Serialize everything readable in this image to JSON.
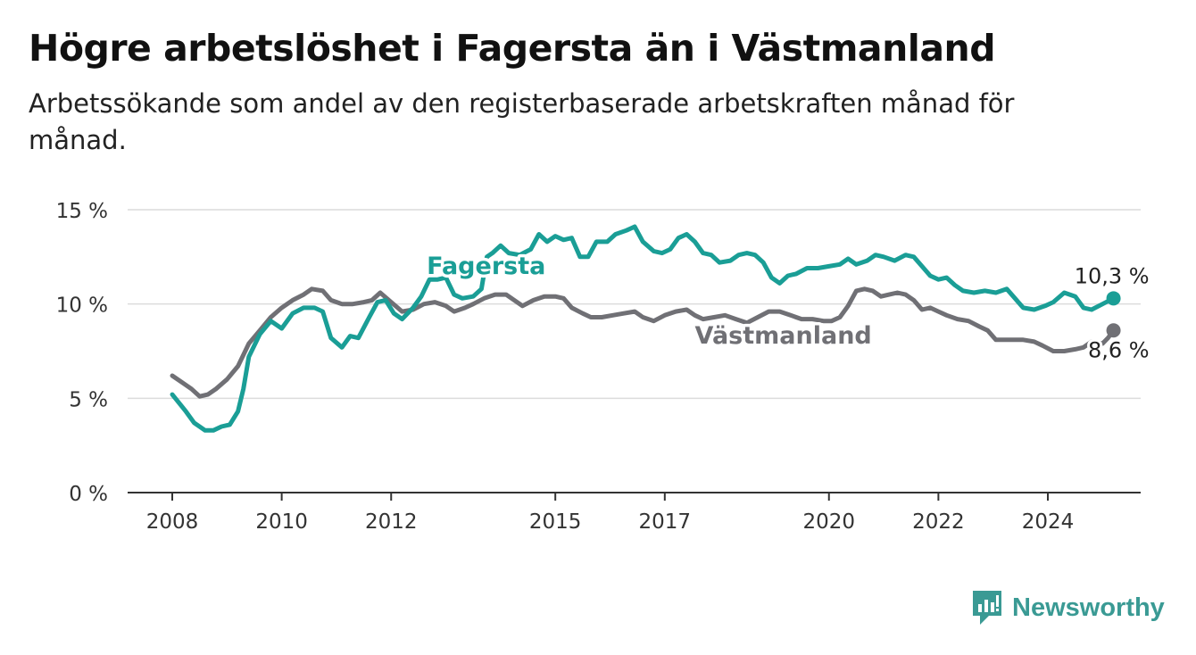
{
  "header": {
    "title": "Högre arbetslöshet i Fagersta än i Västmanland",
    "subtitle": "Arbetssökande som andel av den registerbaserade arbetskraften månad för månad."
  },
  "brand": {
    "name": "Newsworthy",
    "icon": "newsworthy-logo-icon",
    "color": "#3a9a94"
  },
  "chart_data": {
    "type": "line",
    "title": "Högre arbetslöshet i Fagersta än i Västmanland",
    "subtitle": "Arbetssökande som andel av den registerbaserade arbetskraften månad för månad.",
    "xlabel": "",
    "ylabel": "",
    "xlim": [
      2008,
      2025
    ],
    "ylim": [
      0,
      15
    ],
    "grid": true,
    "legend": "inline labels",
    "x_ticks": [
      {
        "value": 2008,
        "label": "2008"
      },
      {
        "value": 2010,
        "label": "2010"
      },
      {
        "value": 2012,
        "label": "2012"
      },
      {
        "value": 2015,
        "label": "2015"
      },
      {
        "value": 2017,
        "label": "2017"
      },
      {
        "value": 2020,
        "label": "2020"
      },
      {
        "value": 2022,
        "label": "2022"
      },
      {
        "value": 2024,
        "label": "2024"
      }
    ],
    "y_ticks": [
      {
        "value": 0,
        "label": "0 %"
      },
      {
        "value": 5,
        "label": "5 %"
      },
      {
        "value": 10,
        "label": "10 %"
      },
      {
        "value": 15,
        "label": "15 %"
      }
    ],
    "series": [
      {
        "name": "Fagersta",
        "color": "#1a9e96",
        "end_label": "10,3 %",
        "points": [
          [
            2008.0,
            5.2
          ],
          [
            2008.25,
            4.3
          ],
          [
            2008.4,
            3.7
          ],
          [
            2008.6,
            3.3
          ],
          [
            2008.75,
            3.3
          ],
          [
            2008.9,
            3.5
          ],
          [
            2009.05,
            3.6
          ],
          [
            2009.2,
            4.3
          ],
          [
            2009.3,
            5.5
          ],
          [
            2009.4,
            7.2
          ],
          [
            2009.6,
            8.4
          ],
          [
            2009.8,
            9.1
          ],
          [
            2010.0,
            8.7
          ],
          [
            2010.2,
            9.5
          ],
          [
            2010.4,
            9.8
          ],
          [
            2010.6,
            9.8
          ],
          [
            2010.75,
            9.6
          ],
          [
            2010.9,
            8.2
          ],
          [
            2011.1,
            7.7
          ],
          [
            2011.25,
            8.3
          ],
          [
            2011.4,
            8.2
          ],
          [
            2011.6,
            9.3
          ],
          [
            2011.75,
            10.1
          ],
          [
            2011.9,
            10.2
          ],
          [
            2012.05,
            9.5
          ],
          [
            2012.2,
            9.2
          ],
          [
            2012.4,
            9.8
          ],
          [
            2012.55,
            10.4
          ],
          [
            2012.7,
            11.3
          ],
          [
            2012.85,
            11.3
          ],
          [
            2013.0,
            11.4
          ],
          [
            2013.15,
            10.5
          ],
          [
            2013.3,
            10.3
          ],
          [
            2013.5,
            10.4
          ],
          [
            2013.65,
            10.8
          ],
          [
            2013.75,
            12.5
          ],
          [
            2013.85,
            12.7
          ],
          [
            2014.0,
            13.1
          ],
          [
            2014.15,
            12.7
          ],
          [
            2014.35,
            12.6
          ],
          [
            2014.55,
            12.9
          ],
          [
            2014.7,
            13.7
          ],
          [
            2014.85,
            13.3
          ],
          [
            2015.0,
            13.6
          ],
          [
            2015.15,
            13.4
          ],
          [
            2015.3,
            13.5
          ],
          [
            2015.45,
            12.5
          ],
          [
            2015.6,
            12.5
          ],
          [
            2015.75,
            13.3
          ],
          [
            2015.95,
            13.3
          ],
          [
            2016.1,
            13.7
          ],
          [
            2016.3,
            13.9
          ],
          [
            2016.45,
            14.1
          ],
          [
            2016.6,
            13.3
          ],
          [
            2016.8,
            12.8
          ],
          [
            2016.95,
            12.7
          ],
          [
            2017.1,
            12.9
          ],
          [
            2017.25,
            13.5
          ],
          [
            2017.4,
            13.7
          ],
          [
            2017.55,
            13.3
          ],
          [
            2017.7,
            12.7
          ],
          [
            2017.85,
            12.6
          ],
          [
            2018.0,
            12.2
          ],
          [
            2018.2,
            12.3
          ],
          [
            2018.35,
            12.6
          ],
          [
            2018.5,
            12.7
          ],
          [
            2018.65,
            12.6
          ],
          [
            2018.8,
            12.2
          ],
          [
            2018.95,
            11.4
          ],
          [
            2019.1,
            11.1
          ],
          [
            2019.25,
            11.5
          ],
          [
            2019.4,
            11.6
          ],
          [
            2019.6,
            11.9
          ],
          [
            2019.8,
            11.9
          ],
          [
            2020.0,
            12.0
          ],
          [
            2020.2,
            12.1
          ],
          [
            2020.35,
            12.4
          ],
          [
            2020.5,
            12.1
          ],
          [
            2020.7,
            12.3
          ],
          [
            2020.85,
            12.6
          ],
          [
            2021.0,
            12.5
          ],
          [
            2021.2,
            12.3
          ],
          [
            2021.4,
            12.6
          ],
          [
            2021.55,
            12.5
          ],
          [
            2021.7,
            12.0
          ],
          [
            2021.85,
            11.5
          ],
          [
            2022.0,
            11.3
          ],
          [
            2022.15,
            11.4
          ],
          [
            2022.3,
            11.0
          ],
          [
            2022.45,
            10.7
          ],
          [
            2022.65,
            10.6
          ],
          [
            2022.85,
            10.7
          ],
          [
            2023.05,
            10.6
          ],
          [
            2023.25,
            10.8
          ],
          [
            2023.4,
            10.3
          ],
          [
            2023.55,
            9.8
          ],
          [
            2023.75,
            9.7
          ],
          [
            2023.95,
            9.9
          ],
          [
            2024.1,
            10.1
          ],
          [
            2024.3,
            10.6
          ],
          [
            2024.5,
            10.4
          ],
          [
            2024.65,
            9.8
          ],
          [
            2024.8,
            9.7
          ],
          [
            2025.0,
            10.0
          ],
          [
            2025.2,
            10.3
          ]
        ]
      },
      {
        "name": "Västmanland",
        "color": "#707075",
        "end_label": "8,6 %",
        "points": [
          [
            2008.0,
            6.2
          ],
          [
            2008.2,
            5.8
          ],
          [
            2008.35,
            5.5
          ],
          [
            2008.5,
            5.1
          ],
          [
            2008.65,
            5.2
          ],
          [
            2008.8,
            5.5
          ],
          [
            2009.0,
            6.0
          ],
          [
            2009.2,
            6.7
          ],
          [
            2009.4,
            7.9
          ],
          [
            2009.6,
            8.6
          ],
          [
            2009.8,
            9.3
          ],
          [
            2010.0,
            9.8
          ],
          [
            2010.2,
            10.2
          ],
          [
            2010.4,
            10.5
          ],
          [
            2010.55,
            10.8
          ],
          [
            2010.75,
            10.7
          ],
          [
            2010.9,
            10.2
          ],
          [
            2011.1,
            10.0
          ],
          [
            2011.3,
            10.0
          ],
          [
            2011.5,
            10.1
          ],
          [
            2011.65,
            10.2
          ],
          [
            2011.8,
            10.6
          ],
          [
            2012.0,
            10.1
          ],
          [
            2012.2,
            9.6
          ],
          [
            2012.4,
            9.7
          ],
          [
            2012.6,
            10.0
          ],
          [
            2012.8,
            10.1
          ],
          [
            2013.0,
            9.9
          ],
          [
            2013.15,
            9.6
          ],
          [
            2013.35,
            9.8
          ],
          [
            2013.5,
            10.0
          ],
          [
            2013.7,
            10.3
          ],
          [
            2013.9,
            10.5
          ],
          [
            2014.1,
            10.5
          ],
          [
            2014.25,
            10.2
          ],
          [
            2014.4,
            9.9
          ],
          [
            2014.6,
            10.2
          ],
          [
            2014.8,
            10.4
          ],
          [
            2015.0,
            10.4
          ],
          [
            2015.15,
            10.3
          ],
          [
            2015.3,
            9.8
          ],
          [
            2015.5,
            9.5
          ],
          [
            2015.65,
            9.3
          ],
          [
            2015.85,
            9.3
          ],
          [
            2016.05,
            9.4
          ],
          [
            2016.25,
            9.5
          ],
          [
            2016.45,
            9.6
          ],
          [
            2016.6,
            9.3
          ],
          [
            2016.8,
            9.1
          ],
          [
            2017.0,
            9.4
          ],
          [
            2017.2,
            9.6
          ],
          [
            2017.4,
            9.7
          ],
          [
            2017.55,
            9.4
          ],
          [
            2017.7,
            9.2
          ],
          [
            2017.9,
            9.3
          ],
          [
            2018.1,
            9.4
          ],
          [
            2018.3,
            9.2
          ],
          [
            2018.5,
            9.0
          ],
          [
            2018.7,
            9.3
          ],
          [
            2018.9,
            9.6
          ],
          [
            2019.1,
            9.6
          ],
          [
            2019.3,
            9.4
          ],
          [
            2019.5,
            9.2
          ],
          [
            2019.7,
            9.2
          ],
          [
            2019.9,
            9.1
          ],
          [
            2020.05,
            9.1
          ],
          [
            2020.2,
            9.3
          ],
          [
            2020.35,
            9.9
          ],
          [
            2020.5,
            10.7
          ],
          [
            2020.65,
            10.8
          ],
          [
            2020.8,
            10.7
          ],
          [
            2020.95,
            10.4
          ],
          [
            2021.1,
            10.5
          ],
          [
            2021.25,
            10.6
          ],
          [
            2021.4,
            10.5
          ],
          [
            2021.55,
            10.2
          ],
          [
            2021.7,
            9.7
          ],
          [
            2021.85,
            9.8
          ],
          [
            2022.0,
            9.6
          ],
          [
            2022.15,
            9.4
          ],
          [
            2022.35,
            9.2
          ],
          [
            2022.55,
            9.1
          ],
          [
            2022.75,
            8.8
          ],
          [
            2022.9,
            8.6
          ],
          [
            2023.05,
            8.1
          ],
          [
            2023.3,
            8.1
          ],
          [
            2023.55,
            8.1
          ],
          [
            2023.75,
            8.0
          ],
          [
            2023.9,
            7.8
          ],
          [
            2024.1,
            7.5
          ],
          [
            2024.3,
            7.5
          ],
          [
            2024.5,
            7.6
          ],
          [
            2024.65,
            7.7
          ],
          [
            2024.8,
            8.0
          ],
          [
            2025.0,
            7.9
          ],
          [
            2025.1,
            8.2
          ],
          [
            2025.2,
            8.6
          ]
        ]
      }
    ],
    "annotations": [
      {
        "text": "Fagersta",
        "series": "Fagersta",
        "at": [
          2012.65,
          11.6
        ]
      },
      {
        "text": "Västmanland",
        "series": "Västmanland",
        "at": [
          2017.55,
          7.9
        ]
      }
    ]
  }
}
